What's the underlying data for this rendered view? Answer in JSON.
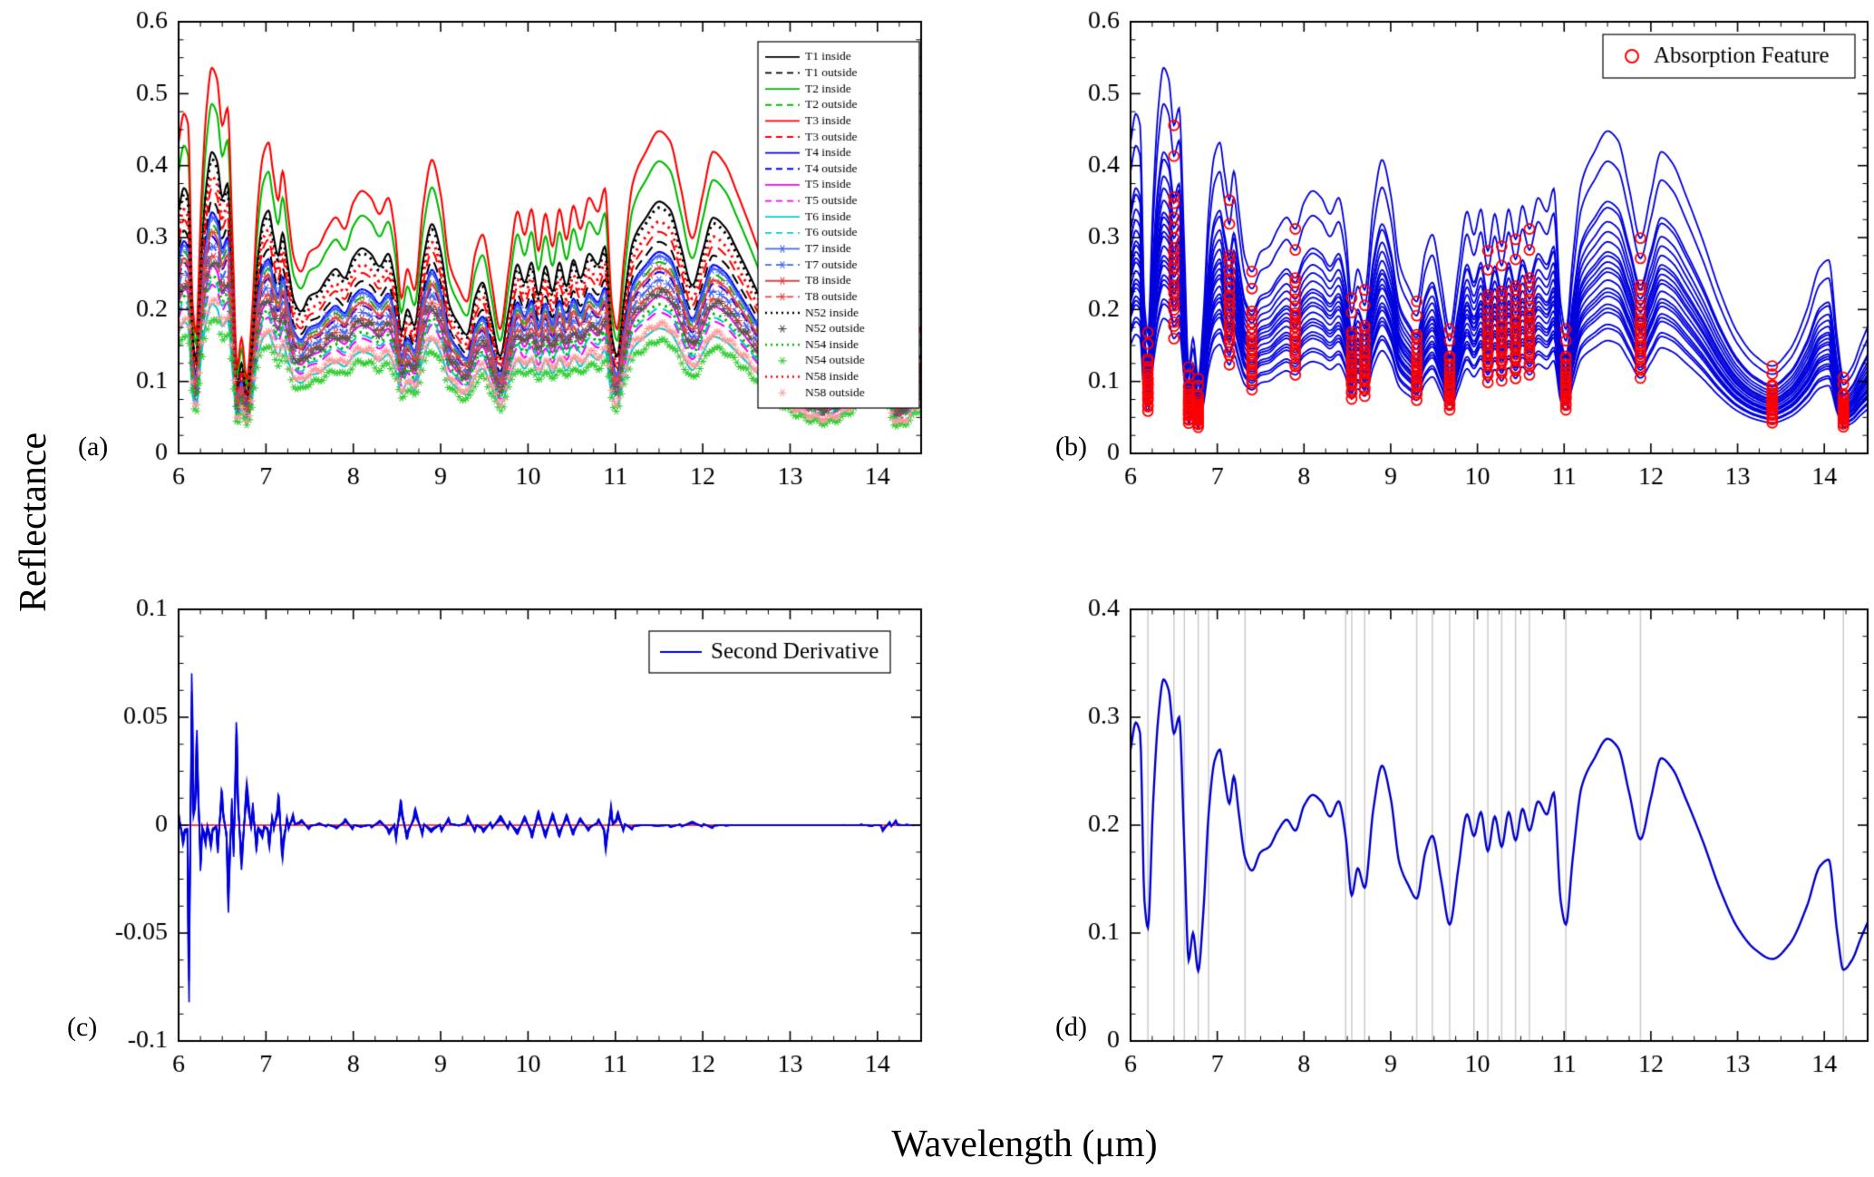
{
  "figure": {
    "ylabel": "Reflectance",
    "xlabel": "Wavelength (μm)",
    "background": "#ffffff"
  },
  "chart_data": [
    {
      "panel": "a",
      "panel_label": "(a)",
      "type": "line",
      "xlim": [
        6,
        14.5
      ],
      "ylim": [
        0,
        0.6
      ],
      "xtick_values": [
        6,
        7,
        8,
        9,
        10,
        11,
        12,
        13,
        14
      ],
      "xtick_labels": [
        "6",
        "7",
        "8",
        "9",
        "10",
        "11",
        "12",
        "13",
        "14"
      ],
      "ytick_values": [
        0,
        0.1,
        0.2,
        0.3,
        0.4,
        0.5,
        0.6
      ],
      "ytick_labels": [
        "0",
        "0.1",
        "0.2",
        "0.3",
        "0.4",
        "0.5",
        "0.6"
      ],
      "x_minor": 0.25,
      "y_minor": 0.025,
      "legend_position": "top-right",
      "series": [
        {
          "label": "T1 inside",
          "color": "#000000",
          "style": "solid",
          "marker": "none",
          "scale": 1.25
        },
        {
          "label": "T1 outside",
          "color": "#000000",
          "style": "dashed",
          "marker": "none",
          "scale": 1.05
        },
        {
          "label": "T2 inside",
          "color": "#00bb00",
          "style": "solid",
          "marker": "none",
          "scale": 1.45
        },
        {
          "label": "T2 outside",
          "color": "#00bb00",
          "style": "dashed",
          "marker": "none",
          "scale": 0.95
        },
        {
          "label": "T3 inside",
          "color": "#ff0000",
          "style": "solid",
          "marker": "none",
          "scale": 1.6
        },
        {
          "label": "T3 outside",
          "color": "#ff0000",
          "style": "dashed",
          "marker": "none",
          "scale": 1.1
        },
        {
          "label": "T4 inside",
          "color": "#0000ff",
          "style": "solid",
          "marker": "none",
          "scale": 1.0
        },
        {
          "label": "T4 outside",
          "color": "#0000ff",
          "style": "dashed",
          "marker": "none",
          "scale": 0.9
        },
        {
          "label": "T5 inside",
          "color": "#ff00ff",
          "style": "solid",
          "marker": "none",
          "scale": 0.78
        },
        {
          "label": "T5 outside",
          "color": "#ff00ff",
          "style": "dashed",
          "marker": "none",
          "scale": 0.7
        },
        {
          "label": "T6 inside",
          "color": "#00cccc",
          "style": "solid",
          "marker": "none",
          "scale": 0.62
        },
        {
          "label": "T6 outside",
          "color": "#00cccc",
          "style": "dashed",
          "marker": "none",
          "scale": 0.72
        },
        {
          "label": "T7 inside",
          "color": "#4466ee",
          "style": "solid",
          "marker": "star",
          "scale": 0.98
        },
        {
          "label": "T7 outside",
          "color": "#4466ee",
          "style": "dashed",
          "marker": "star",
          "scale": 0.86
        },
        {
          "label": "T8 inside",
          "color": "#dd4444",
          "style": "solid",
          "marker": "star",
          "scale": 0.92
        },
        {
          "label": "T8 outside",
          "color": "#dd4444",
          "style": "dashed",
          "marker": "star",
          "scale": 0.82
        },
        {
          "label": "N52 inside",
          "color": "#000000",
          "style": "dotted",
          "marker": "none",
          "scale": 1.22
        },
        {
          "label": "N52 outside",
          "color": "#555555",
          "style": "none",
          "marker": "star",
          "scale": 0.8
        },
        {
          "label": "N54 inside",
          "color": "#00bb00",
          "style": "dotted",
          "marker": "none",
          "scale": 0.74
        },
        {
          "label": "N54 outside",
          "color": "#33cc33",
          "style": "none",
          "marker": "star",
          "scale": 0.56
        },
        {
          "label": "N58 inside",
          "color": "#ff0000",
          "style": "dotted",
          "marker": "none",
          "scale": 1.15
        },
        {
          "label": "N58 outside",
          "color": "#ff9999",
          "style": "none",
          "marker": "star",
          "scale": 0.64
        }
      ]
    },
    {
      "panel": "b",
      "panel_label": "(b)",
      "type": "line",
      "xlim": [
        6,
        14.5
      ],
      "ylim": [
        0,
        0.6
      ],
      "xtick_values": [
        6,
        7,
        8,
        9,
        10,
        11,
        12,
        13,
        14
      ],
      "xtick_labels": [
        "6",
        "7",
        "8",
        "9",
        "10",
        "11",
        "12",
        "13",
        "14"
      ],
      "ytick_values": [
        0,
        0.1,
        0.2,
        0.3,
        0.4,
        0.5,
        0.6
      ],
      "ytick_labels": [
        "0",
        "0.1",
        "0.2",
        "0.3",
        "0.4",
        "0.5",
        "0.6"
      ],
      "x_minor": 0.25,
      "y_minor": 0.025,
      "legend_label": "Absorption Feature",
      "legend_position": "top-right",
      "line_color": "#0000dd",
      "marker_color": "#ff0000"
    },
    {
      "panel": "c",
      "panel_label": "(c)",
      "type": "line",
      "xlim": [
        6,
        14.5
      ],
      "ylim": [
        -0.1,
        0.1
      ],
      "xtick_values": [
        6,
        7,
        8,
        9,
        10,
        11,
        12,
        13,
        14
      ],
      "xtick_labels": [
        "6",
        "7",
        "8",
        "9",
        "10",
        "11",
        "12",
        "13",
        "14"
      ],
      "ytick_values": [
        -0.1,
        -0.05,
        0,
        0.05,
        0.1
      ],
      "ytick_labels": [
        "-0.1",
        "-0.05",
        "0",
        "0.05",
        "0.1"
      ],
      "x_minor": 0.25,
      "y_minor": 0.0125,
      "legend_label": "Second Derivative",
      "legend_position": "top-right",
      "line_color": "#0000dd",
      "zero_line_color": "#ff0000",
      "curve_scales": [
        1,
        0.88,
        0.76,
        0.64,
        0.52
      ],
      "max_amplitude": 0.082
    },
    {
      "panel": "d",
      "panel_label": "(d)",
      "type": "line",
      "xlim": [
        6,
        14.5
      ],
      "ylim": [
        0,
        0.4
      ],
      "xtick_values": [
        6,
        7,
        8,
        9,
        10,
        11,
        12,
        13,
        14
      ],
      "xtick_labels": [
        "6",
        "7",
        "8",
        "9",
        "10",
        "11",
        "12",
        "13",
        "14"
      ],
      "ytick_values": [
        0,
        0.1,
        0.2,
        0.3,
        0.4
      ],
      "ytick_labels": [
        "0",
        "0.1",
        "0.2",
        "0.3",
        "0.4"
      ],
      "x_minor": 0.25,
      "y_minor": 0.025,
      "line_color": "#0000cc",
      "vline_color": "#cccccc",
      "vlines": [
        6.2,
        6.5,
        6.62,
        6.78,
        6.9,
        7.32,
        8.48,
        8.55,
        8.7,
        9.3,
        9.48,
        9.68,
        9.96,
        10.12,
        10.28,
        10.44,
        10.6,
        11.02,
        11.88,
        14.22
      ]
    }
  ],
  "base_spectrum": {
    "x": [
      6.0,
      6.06,
      6.11,
      6.16,
      6.2,
      6.26,
      6.32,
      6.38,
      6.44,
      6.5,
      6.56,
      6.62,
      6.67,
      6.72,
      6.78,
      6.84,
      6.9,
      6.97,
      7.03,
      7.08,
      7.14,
      7.19,
      7.25,
      7.32,
      7.4,
      7.5,
      7.6,
      7.7,
      7.8,
      7.9,
      8.0,
      8.1,
      8.2,
      8.3,
      8.4,
      8.48,
      8.55,
      8.62,
      8.7,
      8.8,
      8.9,
      9.0,
      9.1,
      9.2,
      9.3,
      9.4,
      9.48,
      9.58,
      9.68,
      9.78,
      9.88,
      9.96,
      10.04,
      10.12,
      10.2,
      10.28,
      10.36,
      10.44,
      10.52,
      10.6,
      10.7,
      10.8,
      10.88,
      10.96,
      11.02,
      11.1,
      11.2,
      11.35,
      11.5,
      11.62,
      11.75,
      11.88,
      12.0,
      12.12,
      12.25,
      12.4,
      12.6,
      12.8,
      13.0,
      13.2,
      13.4,
      13.6,
      13.8,
      13.95,
      14.05,
      14.15,
      14.22,
      14.32,
      14.42,
      14.5
    ],
    "y": [
      0.27,
      0.295,
      0.285,
      0.13,
      0.105,
      0.22,
      0.3,
      0.335,
      0.325,
      0.285,
      0.3,
      0.18,
      0.075,
      0.1,
      0.065,
      0.12,
      0.21,
      0.26,
      0.27,
      0.245,
      0.22,
      0.245,
      0.21,
      0.17,
      0.158,
      0.175,
      0.18,
      0.195,
      0.205,
      0.195,
      0.218,
      0.228,
      0.222,
      0.208,
      0.222,
      0.19,
      0.135,
      0.16,
      0.142,
      0.215,
      0.255,
      0.225,
      0.165,
      0.145,
      0.132,
      0.175,
      0.19,
      0.15,
      0.108,
      0.16,
      0.21,
      0.19,
      0.212,
      0.176,
      0.208,
      0.18,
      0.212,
      0.186,
      0.215,
      0.195,
      0.222,
      0.21,
      0.23,
      0.13,
      0.108,
      0.17,
      0.235,
      0.262,
      0.28,
      0.272,
      0.23,
      0.187,
      0.225,
      0.262,
      0.252,
      0.225,
      0.185,
      0.14,
      0.105,
      0.085,
      0.076,
      0.09,
      0.125,
      0.162,
      0.168,
      0.1,
      0.066,
      0.075,
      0.095,
      0.11
    ]
  }
}
